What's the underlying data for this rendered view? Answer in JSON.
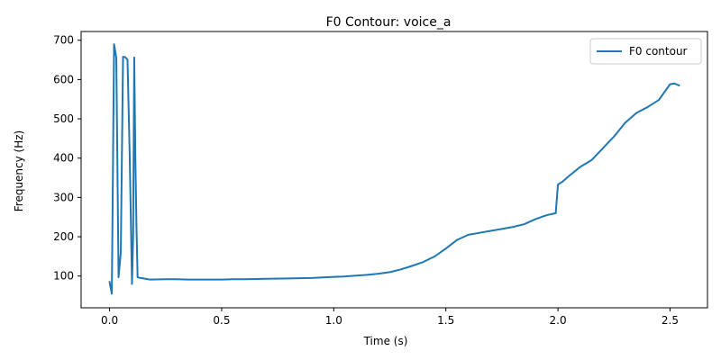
{
  "chart_data": {
    "type": "line",
    "title": "F0 Contour: voice_a",
    "xlabel": "Time (s)",
    "ylabel": "Frequency (Hz)",
    "xlim": [
      -0.127,
      2.667
    ],
    "ylim": [
      19.25,
      722.25
    ],
    "xticks": [
      0.0,
      0.5,
      1.0,
      1.5,
      2.0,
      2.5
    ],
    "xtick_labels": [
      "0.0",
      "0.5",
      "1.0",
      "1.5",
      "2.0",
      "2.5"
    ],
    "yticks": [
      100,
      200,
      300,
      400,
      500,
      600,
      700
    ],
    "ytick_labels": [
      "100",
      "200",
      "300",
      "400",
      "500",
      "600",
      "700"
    ],
    "grid": false,
    "legend_position": "top-right",
    "series": [
      {
        "name": "F0 contour",
        "color": "#1f77b4",
        "x": [
          0.0,
          0.01,
          0.02,
          0.03,
          0.04,
          0.05,
          0.06,
          0.07,
          0.08,
          0.09,
          0.1,
          0.105,
          0.11,
          0.115,
          0.12,
          0.125,
          0.14,
          0.18,
          0.25,
          0.3,
          0.35,
          0.4,
          0.45,
          0.5,
          0.55,
          0.6,
          0.7,
          0.8,
          0.9,
          1.0,
          1.05,
          1.1,
          1.15,
          1.2,
          1.25,
          1.3,
          1.35,
          1.4,
          1.45,
          1.5,
          1.55,
          1.6,
          1.65,
          1.7,
          1.75,
          1.8,
          1.85,
          1.9,
          1.95,
          1.99,
          2.0,
          2.02,
          2.05,
          2.1,
          2.15,
          2.2,
          2.25,
          2.3,
          2.35,
          2.4,
          2.45,
          2.5,
          2.52,
          2.54
        ],
        "y": [
          85,
          55,
          690,
          655,
          97,
          160,
          658,
          657,
          650,
          400,
          80,
          200,
          656,
          400,
          225,
          97,
          95,
          91,
          92,
          92,
          91,
          91,
          91,
          91,
          92,
          92,
          93,
          94,
          95,
          98,
          99,
          101,
          103,
          106,
          110,
          117,
          126,
          136,
          150,
          170,
          192,
          205,
          210,
          215,
          220,
          225,
          232,
          245,
          255,
          260,
          333,
          340,
          355,
          378,
          395,
          425,
          455,
          490,
          515,
          530,
          548,
          588,
          590,
          585
        ]
      }
    ]
  }
}
